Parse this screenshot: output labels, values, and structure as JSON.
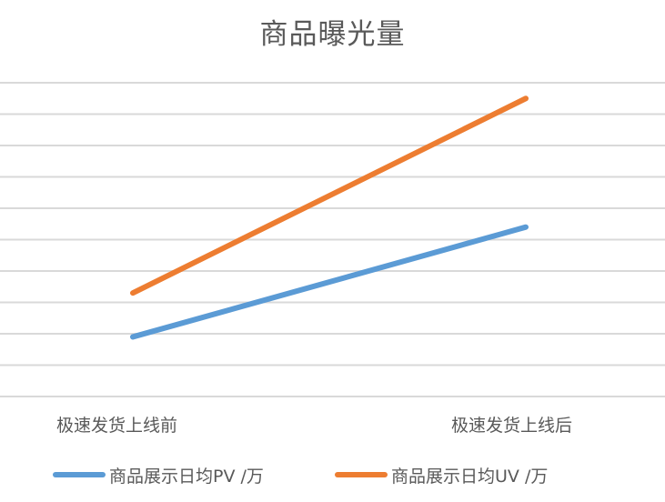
{
  "chart_data": {
    "type": "line",
    "title": "商品曝光量",
    "categories": [
      "极速发货上线前",
      "极速发货上线后"
    ],
    "series": [
      {
        "name": "商品展示日均PV /万",
        "color": "#5B9BD5",
        "values": [
          1.9,
          5.4
        ]
      },
      {
        "name": "商品展示日均UV /万",
        "color": "#ED7D31",
        "values": [
          3.3,
          9.5
        ]
      }
    ],
    "xlabel": "",
    "ylabel": "",
    "ylim": [
      0,
      10
    ],
    "yticks_visible": false,
    "grid": true,
    "gridlines": 11,
    "legend_position": "bottom"
  },
  "ui": {
    "title": "商品曝光量",
    "x_labels": [
      "极速发货上线前",
      "极速发货上线后"
    ],
    "legend": [
      {
        "label": "商品展示日均PV /万",
        "color": "#5B9BD5"
      },
      {
        "label": "商品展示日均UV /万",
        "color": "#ED7D31"
      }
    ]
  }
}
